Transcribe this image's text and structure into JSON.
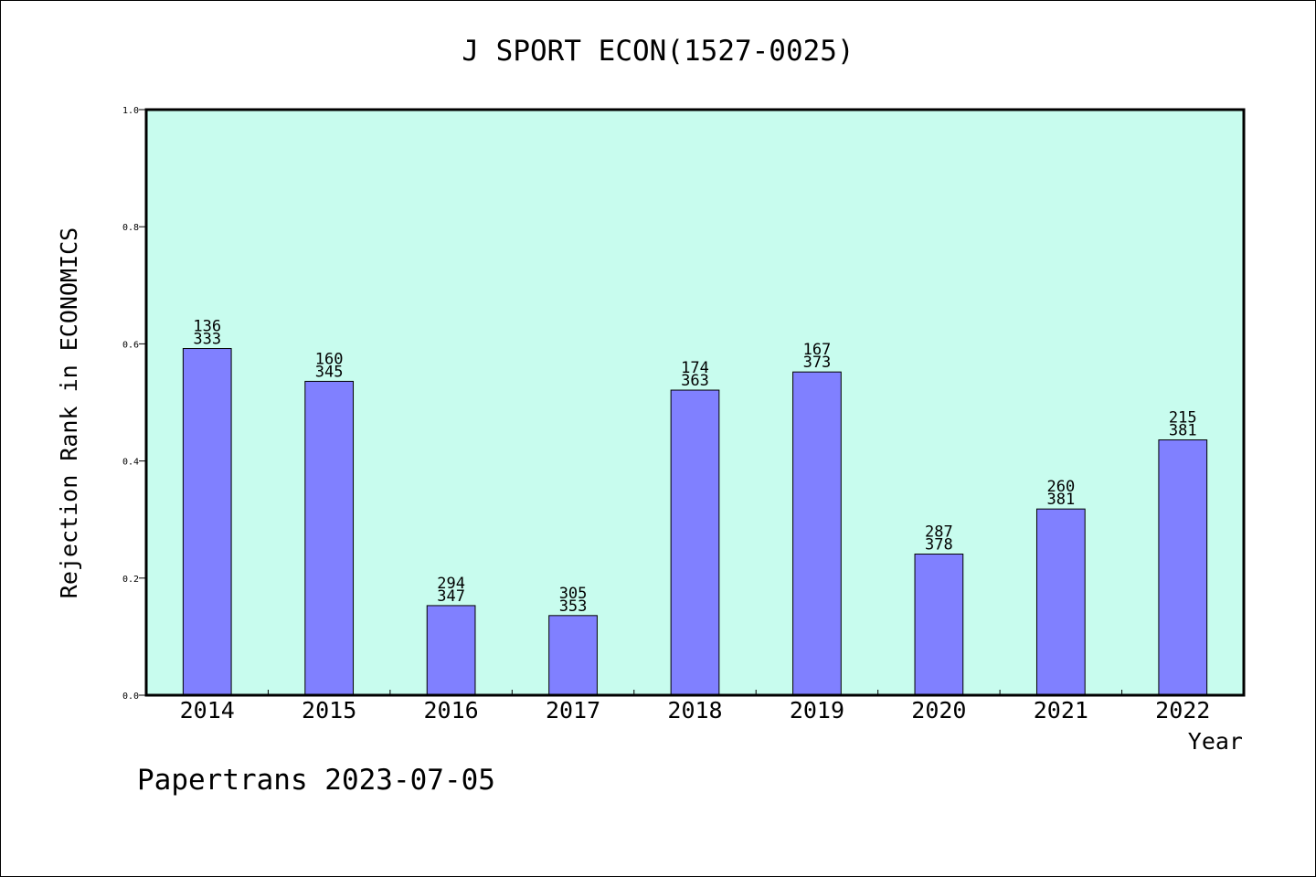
{
  "chart_data": {
    "type": "bar",
    "title": "J SPORT ECON(1527-0025)",
    "xlabel": "Year",
    "ylabel": "Rejection Rank in ECONOMICS",
    "ylim": [
      0,
      1.0
    ],
    "yticks": [
      "0.0",
      "0.2",
      "0.4",
      "0.6",
      "0.8",
      "1.0"
    ],
    "grid": false,
    "categories": [
      "2014",
      "2015",
      "2016",
      "2017",
      "2018",
      "2019",
      "2020",
      "2021",
      "2022"
    ],
    "values": [
      0.592,
      0.536,
      0.153,
      0.136,
      0.521,
      0.552,
      0.241,
      0.318,
      0.436
    ],
    "labels_top": [
      "136",
      "160",
      "294",
      "305",
      "174",
      "167",
      "287",
      "260",
      "215"
    ],
    "labels_bottom": [
      "333",
      "345",
      "347",
      "353",
      "363",
      "373",
      "378",
      "381",
      "381"
    ],
    "colors": {
      "bar": "#8080ff",
      "plot_bg": "#c8fcee",
      "axis": "#000000"
    }
  },
  "footer": {
    "credit": "Papertrans 2023-07-05"
  }
}
